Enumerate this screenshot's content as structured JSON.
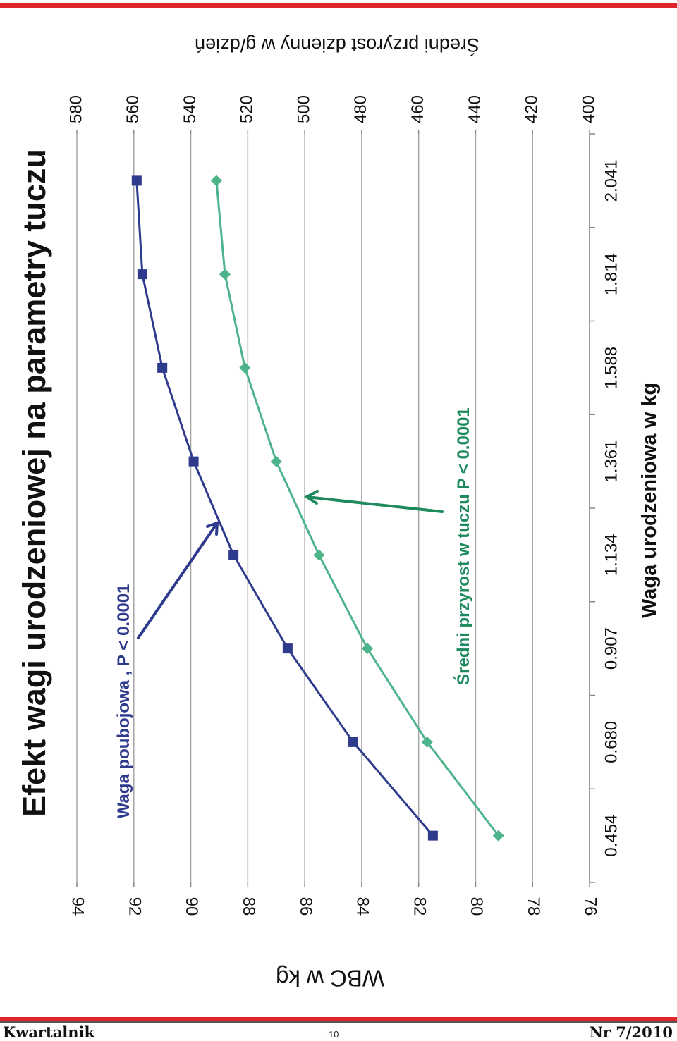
{
  "footer": {
    "left": "Kwartalnik",
    "center": "- 10 -",
    "right": "Nr 7/2010"
  },
  "colors": {
    "accent_red": "#e0262b",
    "series_a": "#2e3a8c",
    "series_b": "#4db38a",
    "arrow_b": "#1d8a5e",
    "grid": "#a6a6a6"
  },
  "chart_data": {
    "type": "line",
    "title": "Efekt wagi urodzeniowej na parametry tuczu",
    "xlabel": "Waga urodzeniowa w kg",
    "ylabel": "WBC w kg",
    "y2label": "Średni przyrost dzienny w g/dzień",
    "categories": [
      "0.454",
      "0.680",
      "0.907",
      "1.134",
      "1.361",
      "1.588",
      "1.814",
      "2.041"
    ],
    "ylim": [
      76,
      94
    ],
    "yticks": [
      76,
      78,
      80,
      82,
      84,
      86,
      88,
      90,
      92,
      94
    ],
    "y2lim": [
      400,
      580
    ],
    "y2ticks": [
      400,
      420,
      440,
      460,
      480,
      500,
      520,
      540,
      560,
      580
    ],
    "grid": true,
    "series": [
      {
        "name": "Waga poubojowa , P < 0.0001",
        "axis": "left",
        "marker": "square",
        "color": "#2e3a8c",
        "values": [
          81.5,
          84.3,
          86.6,
          88.5,
          89.9,
          91.0,
          91.7,
          91.9
        ]
      },
      {
        "name": "Średni przyrost w tuczu P < 0.0001",
        "axis": "right",
        "marker": "diamond",
        "color": "#4db38a",
        "values": [
          432,
          457,
          478,
          495,
          510,
          521,
          528,
          531
        ]
      }
    ]
  }
}
